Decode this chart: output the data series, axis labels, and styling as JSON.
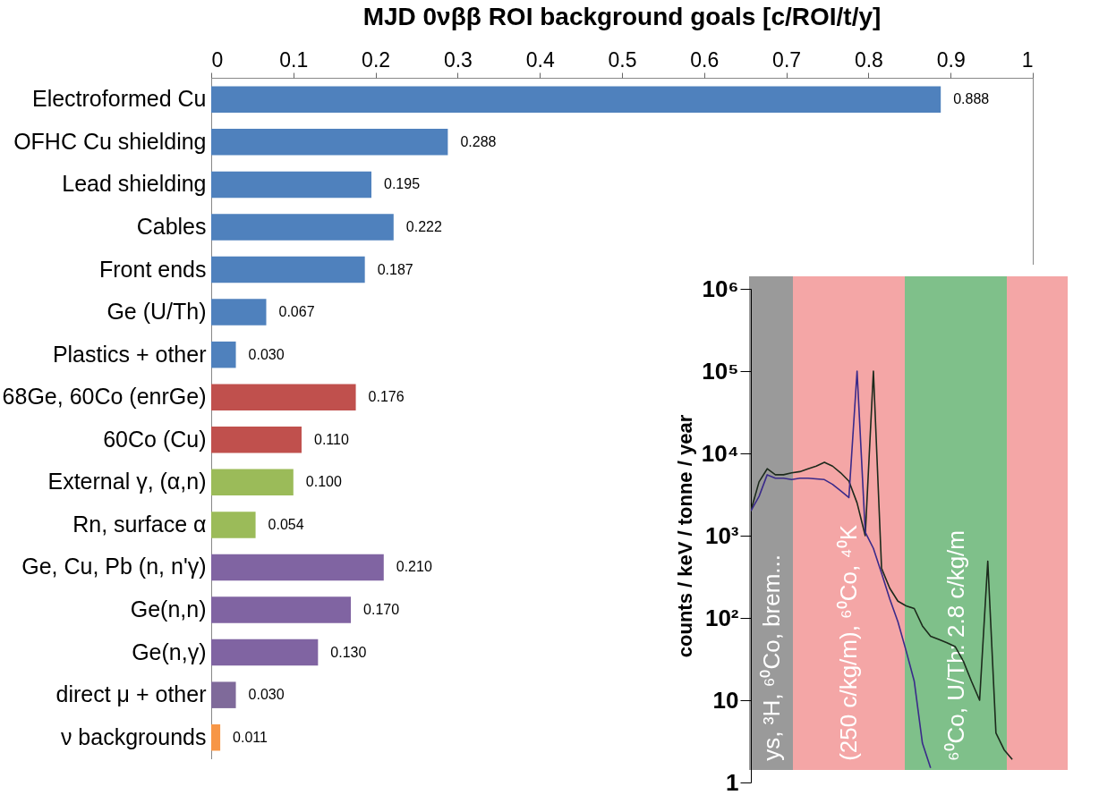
{
  "chart_data": [
    {
      "type": "bar",
      "orientation": "horizontal",
      "title": "MJD 0νββ ROI background goals [c/ROI/t/y]",
      "categories": [
        "Electroformed Cu",
        "OFHC Cu shielding",
        "Lead shielding",
        "Cables",
        "Front ends",
        "Ge (U/Th)",
        "Plastics + other",
        "68Ge, 60Co (enrGe)",
        "60Co (Cu)",
        "External γ, (α,n)",
        "Rn, surface α",
        "Ge, Cu, Pb (n, n'γ)",
        "Ge(n,n)",
        "Ge(n,γ)",
        "direct μ + other",
        "ν backgrounds"
      ],
      "values": [
        0.888,
        0.288,
        0.195,
        0.222,
        0.187,
        0.067,
        0.03,
        0.176,
        0.11,
        0.1,
        0.054,
        0.21,
        0.17,
        0.13,
        0.03,
        0.011
      ],
      "value_labels": [
        "0.888",
        "0.288",
        "0.195",
        "0.222",
        "0.187",
        "0.067",
        "0.030",
        "0.176",
        "0.110",
        "0.100",
        "0.054",
        "0.210",
        "0.170",
        "0.130",
        "0.030",
        "0.011"
      ],
      "colors": [
        "#4f81bd",
        "#4f81bd",
        "#4f81bd",
        "#4f81bd",
        "#4f81bd",
        "#4f81bd",
        "#4f81bd",
        "#c0504d",
        "#c0504d",
        "#9bbb59",
        "#9bbb59",
        "#8064a2",
        "#8064a2",
        "#8064a2",
        "#7f6a9a",
        "#f79646"
      ],
      "xlim": [
        0,
        1
      ],
      "xticks": [
        0,
        0.1,
        0.2,
        0.3,
        0.4,
        0.5,
        0.6,
        0.7,
        0.8,
        0.9,
        1
      ]
    },
    {
      "type": "line",
      "ylabel": "counts / keV / tonne / year",
      "log": "y",
      "tick_labels": "y",
      "categories": [
        null,
        null,
        null,
        null,
        null,
        null,
        null,
        null,
        null,
        null,
        null,
        null,
        null,
        null,
        null,
        null,
        null,
        null,
        null,
        null,
        null,
        null,
        null,
        null,
        null,
        null,
        null,
        null,
        null,
        null,
        null,
        null,
        null,
        null,
        null,
        null,
        null,
        null,
        null,
        null
      ],
      "ylim": [
        1,
        1000000
      ],
      "yticks": [
        {
          "value": 1,
          "label": "1"
        },
        10,
        {
          "value": 100,
          "label": "10²"
        },
        {
          "value": 1000,
          "label": "10³"
        },
        {
          "value": 10000,
          "label": "10⁴"
        },
        {
          "value": 100000,
          "label": "10⁵"
        },
        {
          "value": 1000000,
          "label": "10⁶"
        }
      ],
      "annotations": [
        "ys, ³H, ⁶⁰Co, brem...",
        "(250 c/kg/m), ⁶⁰Co, ⁴⁰K",
        "⁶⁰Co, U/Th: 2.8 c/kg/m"
      ],
      "series": [
        {
          "color": "#1c2a1c",
          "values": [
            2000,
            4500,
            6500,
            5500,
            5500,
            5800,
            6000,
            6500,
            7000,
            7800,
            7000,
            5800,
            4600,
            2500,
            1000,
            100000,
            400,
            230,
            160,
            140,
            130,
            80,
            60,
            55,
            50,
            45,
            30,
            17,
            10,
            490,
            4,
            2.5,
            1.9,
            null,
            null,
            null,
            null,
            null,
            null,
            null
          ]
        },
        {
          "color": "#3a2a8a",
          "values": [
            2000,
            3000,
            5500,
            5000,
            5000,
            4800,
            5000,
            5000,
            4900,
            4800,
            4200,
            3500,
            2900,
            100000,
            1100,
            700,
            350,
            170,
            90,
            40,
            17,
            3,
            1.5,
            null,
            null,
            null,
            null,
            null,
            null,
            null,
            null,
            null,
            null,
            null,
            null,
            null,
            null,
            null,
            null,
            null
          ]
        }
      ]
    }
  ]
}
